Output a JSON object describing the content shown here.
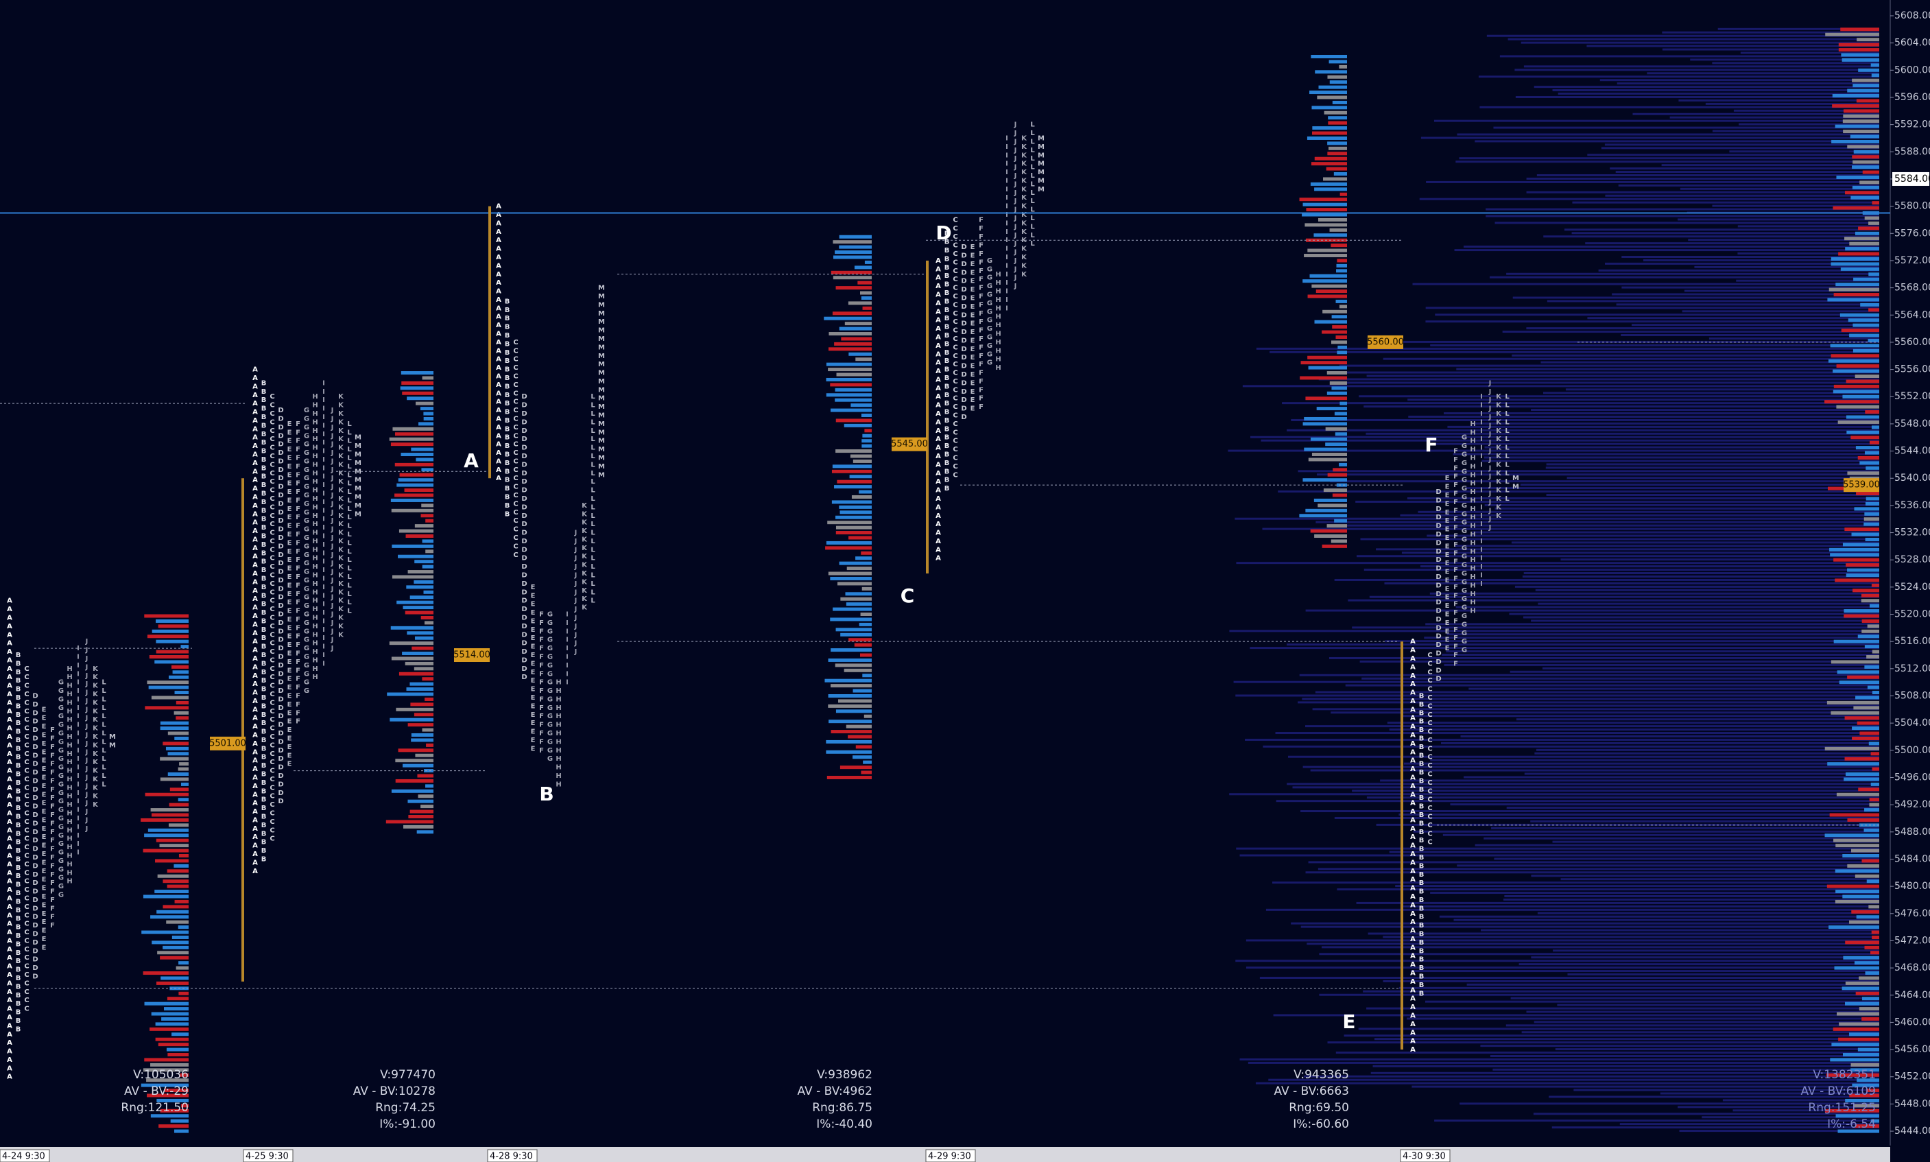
{
  "price_axis": {
    "labels": [
      "5608.00",
      "5604.00",
      "5600.00",
      "5596.00",
      "5592.00",
      "5588.00",
      "5584.00",
      "5580.00",
      "5576.00",
      "5572.00",
      "5568.00",
      "5564.00",
      "5560.00",
      "5556.00",
      "5552.00",
      "5548.00",
      "5544.00",
      "5540.00",
      "5536.00",
      "5532.00",
      "5528.00",
      "5524.00",
      "5520.00",
      "5516.00",
      "5512.00",
      "5508.00",
      "5504.00",
      "5500.00",
      "5496.00",
      "5492.00",
      "5488.00",
      "5484.00",
      "5480.00",
      "5476.00",
      "5472.00",
      "5468.00",
      "5464.00",
      "5460.00",
      "5456.00",
      "5452.00",
      "5448.00",
      "5444.00"
    ],
    "highlight": "5584.00"
  },
  "sessions": [
    {
      "date": "4-24 9:30",
      "stats": [
        "V:105036",
        "AV - BV:-29",
        "Rng:121.50"
      ],
      "tag": "5501.00",
      "profile": [
        [
          "A",
          5452,
          5522
        ],
        [
          "B",
          5458,
          5514
        ],
        [
          "C",
          5462,
          5512
        ],
        [
          "D",
          5466,
          5508
        ],
        [
          "E",
          5470,
          5506
        ],
        [
          "F",
          5474,
          5503
        ],
        [
          "G",
          5478,
          5510
        ],
        [
          "H",
          5480,
          5512
        ],
        [
          "I",
          5484,
          5515
        ],
        [
          "J",
          5488,
          5516
        ],
        [
          "K",
          5492,
          5512
        ],
        [
          "L",
          5494,
          5510
        ],
        [
          "M",
          5500,
          5502
        ]
      ]
    },
    {
      "date": "4-25 9:30",
      "stats": [
        "V:977470",
        "AV - BV:10278",
        "Rng:74.25"
      ],
      "extra": "I%:-91.00",
      "tag": "5514.00",
      "profile": [
        [
          "A",
          5482,
          5556
        ],
        [
          "B",
          5484,
          5554
        ],
        [
          "C",
          5486,
          5552
        ],
        [
          "D",
          5492,
          5550
        ],
        [
          "E",
          5498,
          5548
        ],
        [
          "F",
          5504,
          5548
        ],
        [
          "G",
          5508,
          5550
        ],
        [
          "H",
          5510,
          5552
        ],
        [
          "I",
          5512,
          5554
        ],
        [
          "J",
          5514,
          5550
        ],
        [
          "K",
          5516,
          5552
        ],
        [
          "L",
          5520,
          5548
        ],
        [
          "M",
          5534,
          5546
        ]
      ]
    },
    {
      "date": "4-28 9:30",
      "stats": [
        "V:938962",
        "AV - BV:4962",
        "Rng:86.75"
      ],
      "extra": "I%:-40.40",
      "tag": "5545.00",
      "profile": [
        [
          "A",
          5540,
          5580
        ],
        [
          "B",
          5534,
          5566
        ],
        [
          "C",
          5528,
          5560
        ],
        [
          "D",
          5510,
          5552
        ],
        [
          "E",
          5500,
          5524
        ],
        [
          "F",
          5500,
          5520
        ],
        [
          "G",
          5498,
          5520
        ],
        [
          "H",
          5494,
          5510
        ],
        [
          "I",
          5510,
          5520
        ],
        [
          "J",
          5514,
          5532
        ],
        [
          "K",
          5520,
          5536
        ],
        [
          "L",
          5522,
          5552
        ],
        [
          "M",
          5540,
          5568
        ]
      ]
    },
    {
      "date": "4-29 9:30",
      "stats": [
        "V:943365",
        "AV - BV:6663",
        "Rng:69.50"
      ],
      "extra": "I%:-60.60",
      "tag": "5560.00",
      "profile": [
        [
          "A",
          5528,
          5572
        ],
        [
          "B",
          5538,
          5576
        ],
        [
          "C",
          5540,
          5578
        ],
        [
          "D",
          5548,
          5574
        ],
        [
          "E",
          5550,
          5574
        ],
        [
          "F",
          5550,
          5578
        ],
        [
          "G",
          5556,
          5572
        ],
        [
          "H",
          5556,
          5570
        ],
        [
          "I",
          5564,
          5590
        ],
        [
          "J",
          5568,
          5592
        ],
        [
          "K",
          5570,
          5590
        ],
        [
          "L",
          5574,
          5592
        ],
        [
          "M",
          5582,
          5590
        ]
      ]
    },
    {
      "date": "4-30 9:30",
      "stats": [
        "V:1382351",
        "AV - BV:6109",
        "Rng:151.25"
      ],
      "extra": "I%:-6.54",
      "tag": "5539.00",
      "profile": [
        [
          "A",
          5456,
          5516
        ],
        [
          "B",
          5464,
          5508
        ],
        [
          "C",
          5486,
          5514
        ],
        [
          "D",
          5510,
          5538
        ],
        [
          "E",
          5514,
          5540
        ],
        [
          "F",
          5512,
          5544
        ],
        [
          "G",
          5514,
          5546
        ],
        [
          "H",
          5520,
          5548
        ],
        [
          "I",
          5524,
          5552
        ],
        [
          "J",
          5532,
          5554
        ],
        [
          "K",
          5534,
          5552
        ],
        [
          "L",
          5536,
          5552
        ],
        [
          "M",
          5538,
          5540
        ]
      ]
    }
  ],
  "annotations": [
    "A",
    "B",
    "C",
    "D",
    "E",
    "F"
  ]
}
